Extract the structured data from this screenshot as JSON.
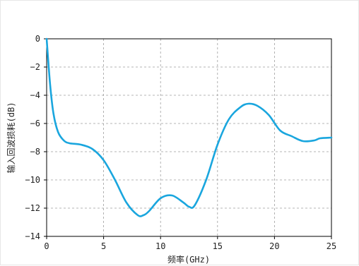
{
  "chart_data": {
    "type": "line",
    "title": "",
    "xlabel": "频率(GHz)",
    "ylabel": "输入回波损耗(dB)",
    "xlim": [
      0,
      25
    ],
    "ylim": [
      -14,
      0
    ],
    "xticks": [
      0,
      5,
      10,
      15,
      20,
      25
    ],
    "yticks": [
      0,
      -2,
      -4,
      -6,
      -8,
      -10,
      -12,
      -14
    ],
    "grid": true,
    "series": [
      {
        "color": "#1aa6de",
        "x": [
          0,
          0.3,
          0.6,
          1.0,
          1.5,
          2.0,
          3.0,
          4.0,
          5.0,
          6.0,
          7.0,
          8.0,
          8.5,
          9.0,
          10.0,
          11.0,
          12.0,
          12.5,
          13.0,
          14.0,
          15.0,
          16.0,
          17.0,
          17.7,
          18.5,
          19.5,
          20.5,
          21.5,
          22.5,
          23.5,
          24.0,
          25.0
        ],
        "y": [
          0,
          -3.2,
          -5.3,
          -6.6,
          -7.2,
          -7.4,
          -7.5,
          -7.8,
          -8.6,
          -10.0,
          -11.6,
          -12.5,
          -12.5,
          -12.2,
          -11.3,
          -11.1,
          -11.6,
          -11.9,
          -11.8,
          -10.0,
          -7.5,
          -5.7,
          -4.85,
          -4.6,
          -4.75,
          -5.4,
          -6.5,
          -6.9,
          -7.25,
          -7.2,
          -7.05,
          -7.0
        ]
      }
    ]
  }
}
